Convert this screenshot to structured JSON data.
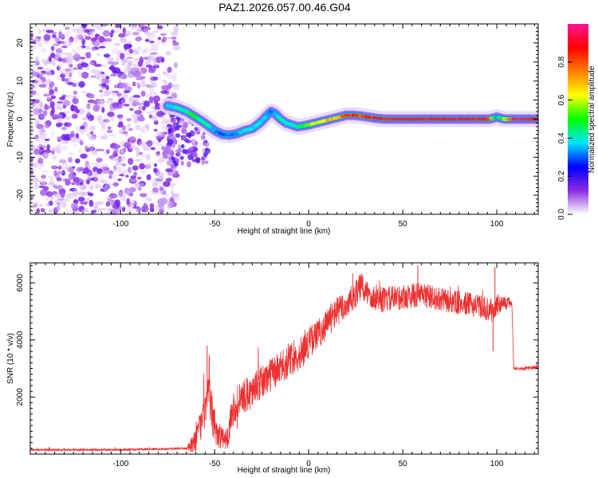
{
  "title": "PAZ1.2026.057.00.46.G04",
  "colors": {
    "snr_line": "#ee3030",
    "frame": "#000000",
    "background": "#ffffff"
  },
  "chart_data": [
    {
      "type": "heatmap",
      "name": "spectrogram",
      "xlabel": "Height of straight line (km)",
      "ylabel": "Frequency (Hz)",
      "xlim": [
        -148,
        122
      ],
      "ylim": [
        -25,
        25
      ],
      "xticks": [
        -100,
        -50,
        0,
        50,
        100
      ],
      "yticks": [
        -20,
        -10,
        0,
        10,
        20
      ],
      "colorbar": {
        "label": "Normalized spectral amplitude",
        "ticks": [
          "0.0",
          "0.2",
          "0.4",
          "0.6",
          "0.8"
        ],
        "tick_values": [
          0.0,
          0.2,
          0.4,
          0.6,
          0.8
        ],
        "range": [
          0,
          1
        ],
        "colormap": [
          "#ffffff",
          "#8a2be2",
          "#0000ff",
          "#00e5ff",
          "#00ff00",
          "#ffff00",
          "#ff8000",
          "#ff0000",
          "#ff1493"
        ]
      },
      "noise_region_x": [
        -148,
        -70
      ],
      "ridge": {
        "x": [
          -75,
          -70,
          -65,
          -60,
          -57,
          -54,
          -50,
          -46,
          -42,
          -38,
          -34,
          -30,
          -26,
          -22,
          -20,
          -18,
          -15,
          -12,
          -9,
          -6,
          -3,
          0,
          4,
          8,
          12,
          16,
          20,
          24,
          28,
          32,
          36,
          40,
          50,
          60,
          70,
          80,
          90,
          96,
          100,
          104,
          110,
          122
        ],
        "freq": [
          3.5,
          3.0,
          2.0,
          0.5,
          -0.5,
          -1.5,
          -3.0,
          -4.0,
          -4.2,
          -3.8,
          -3.0,
          -2.5,
          -1.0,
          1.0,
          2.0,
          1.5,
          0.0,
          -1.0,
          -1.5,
          -2.0,
          -1.8,
          -1.5,
          -1.0,
          -0.5,
          0.0,
          0.5,
          1.0,
          1.0,
          0.8,
          0.5,
          0.2,
          0.0,
          0.0,
          0.0,
          0.0,
          0.0,
          0.0,
          0.0,
          0.5,
          0.0,
          0.0,
          0.0
        ],
        "amplitude": [
          0.35,
          0.4,
          0.45,
          0.5,
          0.42,
          0.45,
          0.35,
          0.3,
          0.32,
          0.35,
          0.4,
          0.38,
          0.4,
          0.35,
          0.3,
          0.35,
          0.45,
          0.4,
          0.38,
          0.45,
          0.5,
          0.55,
          0.6,
          0.65,
          0.7,
          0.75,
          0.8,
          0.85,
          0.8,
          0.85,
          0.9,
          0.88,
          0.92,
          0.9,
          0.92,
          0.95,
          0.9,
          0.85,
          0.35,
          0.6,
          0.95,
          0.95
        ]
      }
    },
    {
      "type": "line",
      "name": "snr",
      "xlabel": "Height of straight line (km)",
      "ylabel": "SNR (10 * v/v)",
      "xlim": [
        -148,
        122
      ],
      "ylim": [
        0,
        6700
      ],
      "xticks": [
        -100,
        -50,
        0,
        50,
        100
      ],
      "yticks": [
        2000,
        4000,
        6000
      ],
      "envelope": {
        "x": [
          -148,
          -120,
          -100,
          -80,
          -65,
          -62,
          -58,
          -55,
          -53,
          -51,
          -48,
          -45,
          -43,
          -41,
          -38,
          -35,
          -30,
          -25,
          -20,
          -15,
          -10,
          -5,
          0,
          5,
          10,
          15,
          20,
          25,
          28,
          30,
          35,
          40,
          50,
          60,
          70,
          80,
          90,
          98,
          100,
          102,
          105,
          108,
          109,
          112,
          115,
          122
        ],
        "y": [
          150,
          150,
          150,
          180,
          200,
          300,
          900,
          1500,
          2200,
          1200,
          700,
          500,
          600,
          1500,
          1800,
          2000,
          2200,
          2500,
          2800,
          3000,
          3300,
          3500,
          3900,
          4200,
          4600,
          5000,
          5200,
          5600,
          5900,
          5700,
          5500,
          5400,
          5500,
          5600,
          5400,
          5300,
          5200,
          5000,
          5200,
          5300,
          5300,
          5300,
          3000,
          3000,
          3000,
          3050
        ]
      },
      "noise_amplitude": {
        "x": [
          -148,
          -65,
          -60,
          -50,
          -45,
          -40,
          -20,
          0,
          20,
          40,
          100,
          108,
          109,
          122
        ],
        "y": [
          40,
          40,
          500,
          700,
          300,
          600,
          600,
          550,
          500,
          450,
          400,
          150,
          60,
          60
        ]
      },
      "spikes": [
        {
          "x": -54,
          "y": 3800
        },
        {
          "x": 58,
          "y": 6600
        },
        {
          "x": 99,
          "y": 6550
        },
        {
          "x": 98,
          "y": 3600
        }
      ]
    }
  ]
}
